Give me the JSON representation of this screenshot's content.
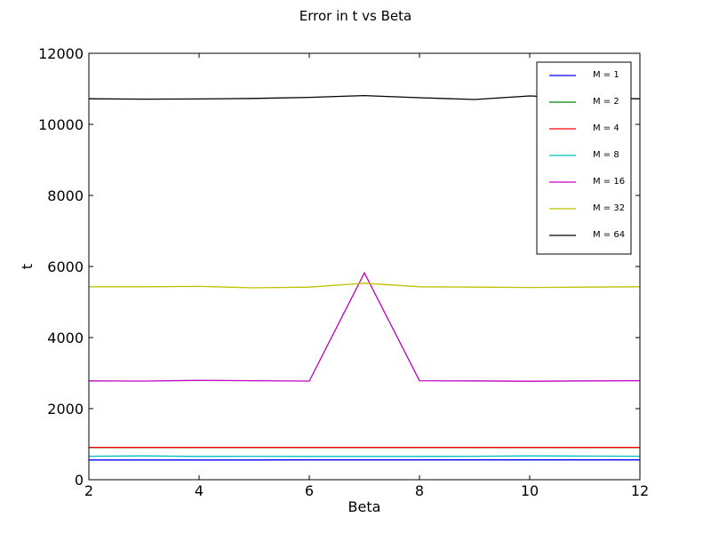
{
  "chart_data": {
    "type": "line",
    "title": "Error in t vs Beta",
    "xlabel": "Beta",
    "ylabel": "t",
    "xlim": [
      2,
      12
    ],
    "ylim": [
      0,
      12000
    ],
    "xticks": [
      2,
      4,
      6,
      8,
      10,
      12
    ],
    "yticks": [
      0,
      2000,
      4000,
      6000,
      8000,
      10000,
      12000
    ],
    "grid": false,
    "legend_position": "top-right",
    "x": [
      2,
      3,
      4,
      5,
      6,
      7,
      8,
      9,
      10,
      11,
      12
    ],
    "series": [
      {
        "name": "M = 1",
        "color": "#0000ff",
        "values": [
          555,
          555,
          555,
          555,
          558,
          558,
          558,
          558,
          558,
          558,
          558
        ]
      },
      {
        "name": "M = 2",
        "color": "#008000",
        "values": [
          905,
          905,
          905,
          905,
          905,
          905,
          905,
          905,
          905,
          905,
          905
        ]
      },
      {
        "name": "M = 4",
        "color": "#ff0000",
        "values": [
          910,
          910,
          910,
          910,
          910,
          910,
          910,
          910,
          910,
          910,
          910
        ]
      },
      {
        "name": "M = 8",
        "color": "#00bfbf",
        "values": [
          660,
          670,
          655,
          660,
          655,
          655,
          655,
          660,
          670,
          665,
          660
        ]
      },
      {
        "name": "M = 16",
        "color": "#bf00bf",
        "values": [
          2780,
          2775,
          2795,
          2785,
          2775,
          5820,
          2785,
          2780,
          2770,
          2780,
          2785
        ]
      },
      {
        "name": "M = 32",
        "color": "#bfbf00",
        "values": [
          5430,
          5430,
          5440,
          5400,
          5420,
          5530,
          5430,
          5420,
          5410,
          5420,
          5430
        ]
      },
      {
        "name": "M = 64",
        "color": "#000000",
        "values": [
          10720,
          10710,
          10715,
          10730,
          10760,
          10810,
          10750,
          10700,
          10800,
          10740,
          10720
        ]
      }
    ]
  }
}
